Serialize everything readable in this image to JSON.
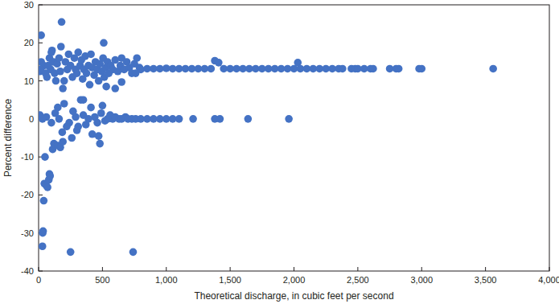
{
  "chart_data": {
    "type": "scatter",
    "x_label": "Theoretical discharge, in cubic feet per second",
    "y_label": "Percent difference",
    "color": "#4472c4",
    "marker": "circle",
    "grid": false,
    "xlim": [
      0,
      4000
    ],
    "ylim": [
      -40,
      30
    ],
    "xticks": [
      0,
      500,
      {
        "value": 1000,
        "label": "1,000"
      },
      {
        "value": 1500,
        "label": "1,500"
      },
      {
        "value": 2000,
        "label": "2,000"
      },
      {
        "value": 2500,
        "label": "2,500"
      },
      {
        "value": 3000,
        "label": "3,000"
      },
      {
        "value": 3500,
        "label": "3,500"
      },
      {
        "value": 4000,
        "label": "4,000"
      }
    ],
    "yticks": [
      -40,
      -30,
      -20,
      -10,
      0,
      10,
      20,
      30
    ],
    "x": [
      10,
      20,
      40,
      55,
      65,
      75,
      85,
      95,
      105,
      115,
      125,
      135,
      145,
      160,
      170,
      190,
      200,
      210,
      225,
      235,
      250,
      265,
      280,
      290,
      300,
      310,
      325,
      335,
      345,
      355,
      365,
      375,
      390,
      400,
      410,
      420,
      435,
      445,
      460,
      470,
      480,
      495,
      505,
      515,
      525,
      540,
      550,
      565,
      580,
      600,
      620,
      640,
      650,
      670,
      690,
      710,
      730,
      750,
      770,
      790,
      800,
      180,
      20,
      510,
      175,
      100,
      600,
      650,
      530,
      10,
      30,
      60,
      100,
      130,
      150,
      160,
      200,
      240,
      270,
      290,
      310,
      330,
      350,
      370,
      390,
      410,
      440,
      460,
      490,
      500,
      520,
      540,
      560,
      580,
      600,
      630,
      650,
      680,
      700,
      730,
      760,
      800,
      850,
      900,
      950,
      1000,
      1050,
      1100,
      1210,
      1380,
      1420,
      1640,
      1960,
      15,
      30,
      32,
      35,
      40,
      45,
      50,
      60,
      70,
      80,
      85,
      90,
      110,
      120,
      150,
      170,
      190,
      185,
      220,
      250,
      260,
      300,
      350,
      420,
      470,
      480,
      740,
      760,
      850,
      900,
      950,
      1000,
      1050,
      1100,
      1150,
      1200,
      1250,
      1300,
      1350,
      1380,
      1410,
      1450,
      1500,
      1550,
      1600,
      1650,
      1700,
      1750,
      1800,
      1850,
      1900,
      1950,
      2000,
      2030,
      2050,
      2100,
      2150,
      2200,
      2250,
      2300,
      2350,
      2380,
      2450,
      2480,
      2500,
      2550,
      2600,
      2620,
      2750,
      2800,
      2820,
      2980,
      3000,
      3560
    ],
    "values": [
      12.5,
      15,
      14,
      12,
      11,
      14,
      16,
      13,
      18,
      15,
      12,
      10,
      14.5,
      16,
      12.5,
      8,
      10,
      15,
      13,
      17,
      14,
      11,
      16,
      13,
      12,
      17.5,
      14,
      15.5,
      10.5,
      13,
      16.5,
      12,
      14,
      9,
      17,
      13.5,
      11.5,
      15,
      13,
      10,
      14.5,
      12.5,
      16,
      11,
      13.5,
      15,
      12,
      14,
      13,
      15.5,
      12.5,
      14,
      16,
      13,
      15,
      13.5,
      12,
      14.5,
      16,
      13.5,
      13,
      25.5,
      22,
      20,
      19,
      17.5,
      8,
      9.7,
      8.5,
      1,
      0,
      0.5,
      -1,
      1.5,
      3,
      0,
      4,
      -1,
      2,
      0.5,
      -2,
      5,
      1,
      -1.5,
      0,
      3,
      0.5,
      -1,
      1.5,
      3.5,
      -0.5,
      0,
      1,
      0,
      0.5,
      0,
      0,
      0.5,
      0,
      0,
      0,
      0,
      0,
      0,
      0,
      0,
      0,
      0,
      0,
      0,
      0,
      0,
      0,
      13,
      -33.5,
      -30,
      -29.5,
      -21.5,
      -17,
      -10,
      -17.5,
      -18,
      -16,
      -14.5,
      -15,
      -8,
      -6.5,
      -7,
      -7.5,
      -6,
      -3.5,
      -2,
      -35,
      -5,
      -3,
      5,
      -4,
      -4.5,
      -6.5,
      -35,
      12,
      13.2,
      13.2,
      13.2,
      13.3,
      13.2,
      13.2,
      13.2,
      13.2,
      13.2,
      13.2,
      13.2,
      15.3,
      14.8,
      13.2,
      13.2,
      13.2,
      13.2,
      13.2,
      13.2,
      13.2,
      13.2,
      13.2,
      13.2,
      13.2,
      13.2,
      14.8,
      13.2,
      13.2,
      13.2,
      13.2,
      13.2,
      13.2,
      13.2,
      13.2,
      13.2,
      13.2,
      13.2,
      13.2,
      13.2,
      13.2,
      13.2,
      13.2,
      13.2,
      13.2,
      13.2,
      13.2
    ]
  }
}
